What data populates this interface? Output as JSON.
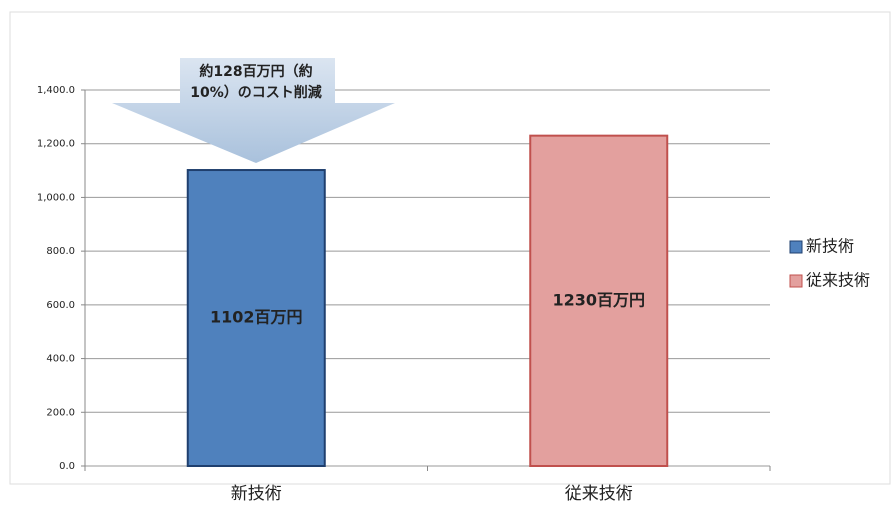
{
  "chart_data": {
    "type": "bar",
    "categories": [
      "新技術",
      "従来技術"
    ],
    "series": [
      {
        "name": "新技術",
        "color": "#4f81bd",
        "values": [
          1102,
          null
        ],
        "value_labels": [
          "1102百万円",
          null
        ]
      },
      {
        "name": "従来技術",
        "color": "#e3a09e",
        "values": [
          null,
          1230
        ],
        "value_labels": [
          null,
          "1230百万円"
        ]
      }
    ],
    "annotation": [
      "約128百万円（約",
      "10%）のコスト削減"
    ],
    "ylim": [
      0,
      1400
    ],
    "yticks": [
      {
        "value": 0,
        "label": "0.0"
      },
      {
        "value": 200,
        "label": "200.0"
      },
      {
        "value": 400,
        "label": "400.0"
      },
      {
        "value": 600,
        "label": "600.0"
      },
      {
        "value": 800,
        "label": "800.0"
      },
      {
        "value": 1000,
        "label": "1,000.0"
      },
      {
        "value": 1200,
        "label": "1,200.0"
      },
      {
        "value": 1400,
        "label": "1,400.0"
      }
    ],
    "grid": true,
    "legend": "right"
  }
}
